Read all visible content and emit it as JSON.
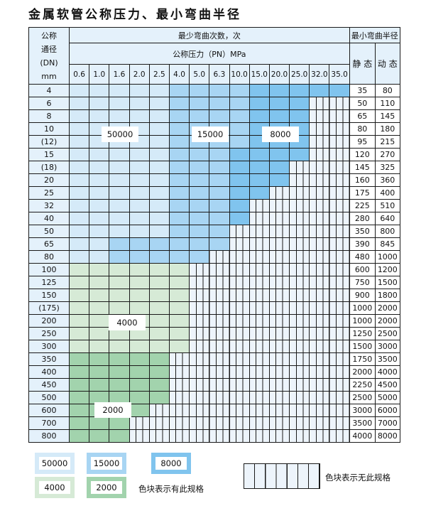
{
  "title": "金属软管公称压力、最小弯曲半径",
  "header": {
    "dn_label": [
      "公称",
      "通径",
      "(DN)",
      "mm"
    ],
    "bend_count": "最少弯曲次数，次",
    "pressure": "公称压力（PN）MPa",
    "radius": "最小弯曲半径",
    "static": "静 态",
    "dynamic": "动 态",
    "pressures": [
      "0.6",
      "1.0",
      "1.6",
      "2.0",
      "2.5",
      "4.0",
      "5.0",
      "6.3",
      "10.0",
      "15.0",
      "20.0",
      "25.0",
      "32.0",
      "35.0"
    ]
  },
  "legend_codes": {
    "A": "50000",
    "B": "15000",
    "C": "8000",
    "D": "4000",
    "E": "2000",
    "X": "无此规格"
  },
  "colors": {
    "A": "#d5eaf8",
    "B": "#a8d5f3",
    "C": "#80c4ee",
    "D": "#d6ead6",
    "E": "#a2d3ad",
    "X": "#edf4fb"
  },
  "rows": [
    {
      "dn": "4",
      "cells": "AAAAABBBBCCCCC",
      "static": "35",
      "dynamic": "80"
    },
    {
      "dn": "6",
      "cells": "AAAAABBBBCCCXX",
      "static": "50",
      "dynamic": "110"
    },
    {
      "dn": "8",
      "cells": "AAAAABBBBCCCXX",
      "static": "65",
      "dynamic": "145"
    },
    {
      "dn": "10",
      "cells": "AAAAABBBBCCCXX",
      "static": "80",
      "dynamic": "180"
    },
    {
      "dn": "(12)",
      "cells": "AAAAABBBBCCCXX",
      "static": "95",
      "dynamic": "215"
    },
    {
      "dn": "15",
      "cells": "AAAAABBBCCCCXX",
      "static": "120",
      "dynamic": "270"
    },
    {
      "dn": "(18)",
      "cells": "AAAAABBBCCCXXX",
      "static": "145",
      "dynamic": "325"
    },
    {
      "dn": "20",
      "cells": "AAAAABBBCCCXXX",
      "static": "160",
      "dynamic": "360"
    },
    {
      "dn": "25",
      "cells": "AAAAABBBCCXXXX",
      "static": "175",
      "dynamic": "400"
    },
    {
      "dn": "32",
      "cells": "AAAAABBBCXXXXX",
      "static": "225",
      "dynamic": "510"
    },
    {
      "dn": "40",
      "cells": "AAAAABBBCXXXXX",
      "static": "280",
      "dynamic": "640"
    },
    {
      "dn": "50",
      "cells": "AAAAABBBXXXXXX",
      "static": "350",
      "dynamic": "800"
    },
    {
      "dn": "65",
      "cells": "AABBBBBBXXXXXX",
      "static": "390",
      "dynamic": "845"
    },
    {
      "dn": "80",
      "cells": "AABBBBBXXXXXXX",
      "static": "480",
      "dynamic": "1000"
    },
    {
      "dn": "100",
      "cells": "DDDDDDXXXXXXXX",
      "static": "600",
      "dynamic": "1200"
    },
    {
      "dn": "125",
      "cells": "DDDDDDXXXXXXXX",
      "static": "750",
      "dynamic": "1500"
    },
    {
      "dn": "150",
      "cells": "DDDDDDXXXXXXXX",
      "static": "900",
      "dynamic": "1800"
    },
    {
      "dn": "(175)",
      "cells": "DDDDDDXXXXXXXX",
      "static": "1000",
      "dynamic": "2000"
    },
    {
      "dn": "200",
      "cells": "DDDDDDXXXXXXXX",
      "static": "1000",
      "dynamic": "2000"
    },
    {
      "dn": "250",
      "cells": "DDDDDDXXXXXXXX",
      "static": "1250",
      "dynamic": "2500"
    },
    {
      "dn": "300",
      "cells": "DDDDDDXXXXXXXX",
      "static": "1500",
      "dynamic": "3000"
    },
    {
      "dn": "350",
      "cells": "EEEEEXXXXXXXXX",
      "static": "1750",
      "dynamic": "3500"
    },
    {
      "dn": "400",
      "cells": "EEEEEXXXXXXXXX",
      "static": "2000",
      "dynamic": "4000"
    },
    {
      "dn": "450",
      "cells": "EEEEEXXXXXXXXX",
      "static": "2250",
      "dynamic": "4500"
    },
    {
      "dn": "500",
      "cells": "EEEEEXXXXXXXXX",
      "static": "2500",
      "dynamic": "5000"
    },
    {
      "dn": "600",
      "cells": "EEEEXXXXXXXXXX",
      "static": "3000",
      "dynamic": "6000"
    },
    {
      "dn": "700",
      "cells": "EEEXXXXXXXXXXX",
      "static": "3500",
      "dynamic": "7000"
    },
    {
      "dn": "800",
      "cells": "EEEXXXXXXXXXXX",
      "static": "4000",
      "dynamic": "8000"
    }
  ],
  "region_labels": [
    "50000",
    "15000",
    "8000",
    "4000",
    "2000"
  ],
  "legend": {
    "items": [
      "50000",
      "15000",
      "8000",
      "4000",
      "2000"
    ],
    "has_spec": "色块表示有此规格",
    "no_spec": "色块表示无此规格"
  }
}
